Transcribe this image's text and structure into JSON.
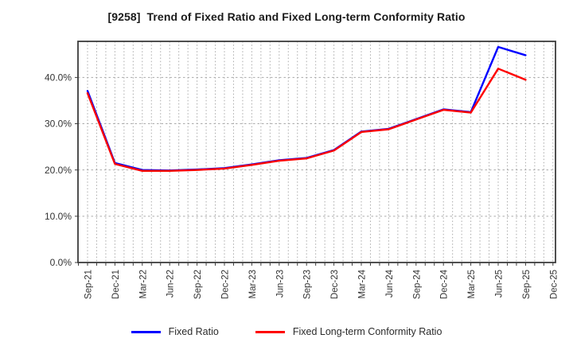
{
  "title": "[9258]  Trend of Fixed Ratio and Fixed Long-term Conformity Ratio",
  "chart_data": {
    "type": "line",
    "categories": [
      "Sep-21",
      "Dec-21",
      "Mar-22",
      "Jun-22",
      "Sep-22",
      "Dec-22",
      "Mar-23",
      "Jun-23",
      "Sep-23",
      "Dec-23",
      "Mar-24",
      "Jun-24",
      "Sep-24",
      "Dec-24",
      "Mar-25",
      "Jun-25",
      "Sep-25",
      "Dec-25"
    ],
    "series": [
      {
        "name": "Fixed Ratio",
        "color": "#0000ff",
        "values": [
          37.1,
          21.5,
          20.0,
          19.9,
          20.1,
          20.4,
          21.2,
          22.1,
          22.6,
          24.3,
          28.3,
          28.9,
          31.0,
          33.1,
          32.5,
          46.6,
          44.8,
          null
        ]
      },
      {
        "name": "Fixed Long-term Conformity Ratio",
        "color": "#ff0000",
        "values": [
          36.6,
          21.3,
          19.8,
          19.8,
          20.0,
          20.3,
          21.1,
          22.0,
          22.5,
          24.2,
          28.2,
          28.8,
          30.9,
          33.0,
          32.4,
          41.9,
          39.5,
          null
        ]
      }
    ],
    "ylim": [
      0,
      47.8
    ],
    "yticks": [
      0,
      10,
      20,
      30,
      40
    ],
    "ytick_labels": [
      "0.0%",
      "10.0%",
      "20.0%",
      "30.0%",
      "40.0%"
    ],
    "grid": true,
    "legend_position": "bottom",
    "xlabel": "",
    "ylabel": ""
  },
  "colors": {
    "grid": "#aaaaaa",
    "frame": "#3c3c3c",
    "tick_text": "#333333"
  }
}
